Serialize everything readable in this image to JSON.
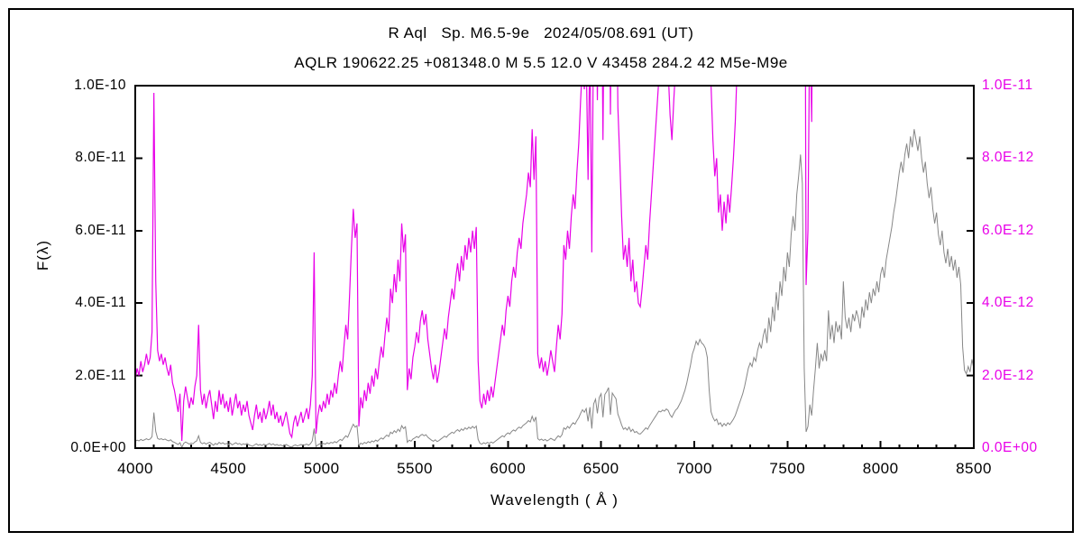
{
  "figure": {
    "background": "#ffffff",
    "border_color": "#000000"
  },
  "chart_data": {
    "type": "line",
    "title": "R Aql   Sp. M6.5-9e   2024/05/08.691 (UT)",
    "subtitle": "AQLR 190622.25 +081348.0 M 5.5 12.0 V 43458 284.2 42 M5e-M9e",
    "xlabel": "Wavelength ( Å )",
    "ylabel": "F(λ)",
    "grid": false,
    "legend": "none",
    "x_min": 4000,
    "x_max": 8500,
    "x_tick_step": 500,
    "x_minor_tick_step": 100,
    "x_tick_labels": [
      "4000",
      "4500",
      "5000",
      "5500",
      "6000",
      "6500",
      "7000",
      "7500",
      "8000",
      "8500"
    ],
    "left_axis": {
      "color": "#000000",
      "max_label": "1.0E-10",
      "tick_labels_top_to_bottom": [
        "1.0E-10",
        "8.0E-11",
        "6.0E-11",
        "4.0E-11",
        "2.0E-11",
        "0.0E+00"
      ]
    },
    "right_axis": {
      "color": "#e800e8",
      "max_label": "1.0E-11",
      "tick_labels_top_to_bottom": [
        "1.0E-11",
        "8.0E-12",
        "6.0E-12",
        "4.0E-12",
        "2.0E-12",
        "0.0E+00"
      ]
    },
    "series": [
      {
        "name": "spectrum-left-scale",
        "color": "#878787",
        "axis": "left",
        "description": "flux on 0 to 1.0E-10 scale"
      },
      {
        "name": "spectrum-right-scale-x10",
        "color": "#e800e8",
        "axis": "right",
        "description": "same flux on 0 to 1.0E-11 scale, clipped at top"
      }
    ],
    "spectrum": {
      "lambda_start": 4000,
      "lambda_step": 10,
      "flux_1e12": [
        1.9,
        2.2,
        2.0,
        2.4,
        2.1,
        2.3,
        2.6,
        2.3,
        2.5,
        3.2,
        9.8,
        4.6,
        2.7,
        2.4,
        2.6,
        2.3,
        2.5,
        2.2,
        2.0,
        2.3,
        1.8,
        1.6,
        1.3,
        1.0,
        1.5,
        0.2,
        1.3,
        1.7,
        1.4,
        1.1,
        1.4,
        1.2,
        1.7,
        2.0,
        3.4,
        1.6,
        1.2,
        1.5,
        1.1,
        1.4,
        1.6,
        1.2,
        0.8,
        1.3,
        1.0,
        1.6,
        1.2,
        1.5,
        1.1,
        1.3,
        1.0,
        1.4,
        0.9,
        1.2,
        1.5,
        1.1,
        1.3,
        0.9,
        1.2,
        1.0,
        1.3,
        0.9,
        0.7,
        0.5,
        0.9,
        1.2,
        0.8,
        1.0,
        0.7,
        1.1,
        0.8,
        1.0,
        1.3,
        0.9,
        1.2,
        0.8,
        1.0,
        0.7,
        0.9,
        0.6,
        0.8,
        1.0,
        0.7,
        0.4,
        0.3,
        0.7,
        0.9,
        0.6,
        0.8,
        1.0,
        0.7,
        0.9,
        1.1,
        0.8,
        1.2,
        2.0,
        5.4,
        0.4,
        0.9,
        1.2,
        1.0,
        1.3,
        1.1,
        1.5,
        1.2,
        1.6,
        1.4,
        1.8,
        1.5,
        2.0,
        2.4,
        2.1,
        2.8,
        3.4,
        3.0,
        4.2,
        5.5,
        6.6,
        5.8,
        6.2,
        0.6,
        1.4,
        1.1,
        1.6,
        1.3,
        1.8,
        1.5,
        2.0,
        1.7,
        2.2,
        1.9,
        2.4,
        2.8,
        2.5,
        3.1,
        3.6,
        3.2,
        4.4,
        4.0,
        4.8,
        4.3,
        5.2,
        4.6,
        6.2,
        5.4,
        5.9,
        1.6,
        2.2,
        1.9,
        2.5,
        2.8,
        3.2,
        2.9,
        3.5,
        3.8,
        3.4,
        3.7,
        3.0,
        2.6,
        2.2,
        1.9,
        2.3,
        1.8,
        2.1,
        2.5,
        2.9,
        3.3,
        3.0,
        3.6,
        4.0,
        4.4,
        4.1,
        4.7,
        5.1,
        4.6,
        5.3,
        4.9,
        5.6,
        5.2,
        5.8,
        5.4,
        6.0,
        5.5,
        6.1,
        2.4,
        1.3,
        1.1,
        1.5,
        1.2,
        1.6,
        1.3,
        1.7,
        1.4,
        1.8,
        2.2,
        2.6,
        3.0,
        3.4,
        3.1,
        3.8,
        4.2,
        3.9,
        4.6,
        5.0,
        4.7,
        5.4,
        5.8,
        5.5,
        6.2,
        6.6,
        7.0,
        7.6,
        7.2,
        8.8,
        7.4,
        8.6,
        2.6,
        2.2,
        2.5,
        2.1,
        2.4,
        2.0,
        2.3,
        2.7,
        2.4,
        2.1,
        2.8,
        3.4,
        3.0,
        3.7,
        5.6,
        5.2,
        6.0,
        5.5,
        6.4,
        7.0,
        6.6,
        7.6,
        8.4,
        9.6,
        10.6,
        9.9,
        10.9,
        7.4,
        11.3,
        5.4,
        12.2,
        13.5,
        9.6,
        14.0,
        15.0,
        8.5,
        14.8,
        15.6,
        16.7,
        9.2,
        15.2,
        14.4,
        13.6,
        9.4,
        8.0,
        6.4,
        5.2,
        5.6,
        5.0,
        5.8,
        4.6,
        5.2,
        4.3,
        4.6,
        4.0,
        3.9,
        4.4,
        5.0,
        5.6,
        5.2,
        6.2,
        7.0,
        7.8,
        8.6,
        9.4,
        10.2,
        10.0,
        10.5,
        10.2,
        10.8,
        10.4,
        9.2,
        8.5,
        9.6,
        10.5,
        11.0,
        12.0,
        13.0,
        14.5,
        16.0,
        18.0,
        20.5,
        23.0,
        26.0,
        27.5,
        29.5,
        28.5,
        30.0,
        29.0,
        28.5,
        27.5,
        25.0,
        16.0,
        10.0,
        8.5,
        7.5,
        8.0,
        6.5,
        7.0,
        6.0,
        6.8,
        6.2,
        7.0,
        6.5,
        7.2,
        8.0,
        9.0,
        10.5,
        12.0,
        13.5,
        15.0,
        17.0,
        19.5,
        22.0,
        23.5,
        22.5,
        25.0,
        24.0,
        27.0,
        29.0,
        27.5,
        31.0,
        33.0,
        29.0,
        36.0,
        32.0,
        39.0,
        35.0,
        43.0,
        38.0,
        46.0,
        42.0,
        50.0,
        46.0,
        54.0,
        50.0,
        59.0,
        64.0,
        60.0,
        70.0,
        75.0,
        81.0,
        73.0,
        22.0,
        4.5,
        6.0,
        12.0,
        9.0,
        16.0,
        22.0,
        29.0,
        22.0,
        26.0,
        24.0,
        27.0,
        24.0,
        38.0,
        30.0,
        34.0,
        29.0,
        35.0,
        32.0,
        34.0,
        30.0,
        46.0,
        36.0,
        33.0,
        36.0,
        32.0,
        37.0,
        35.0,
        38.0,
        36.0,
        33.0,
        39.0,
        36.0,
        41.0,
        38.0,
        43.0,
        40.0,
        44.0,
        42.0,
        46.0,
        43.0,
        48.0,
        50.0,
        47.0,
        52.0,
        55.0,
        58.0,
        61.0,
        65.0,
        68.0,
        72.0,
        76.0,
        79.0,
        76.0,
        81.0,
        84.0,
        80.0,
        86.0,
        83.0,
        88.0,
        85.0,
        82.0,
        86.0,
        80.0,
        76.0,
        79.0,
        73.0,
        69.0,
        72.0,
        66.0,
        62.0,
        65.0,
        59.0,
        56.0,
        60.0,
        54.0,
        51.0,
        55.0,
        50.0,
        53.0,
        49.0,
        52.0,
        47.0,
        50.0,
        45.0,
        28.0,
        21.5,
        20.5,
        22.5,
        21.0,
        24.5,
        22.0
      ]
    }
  }
}
